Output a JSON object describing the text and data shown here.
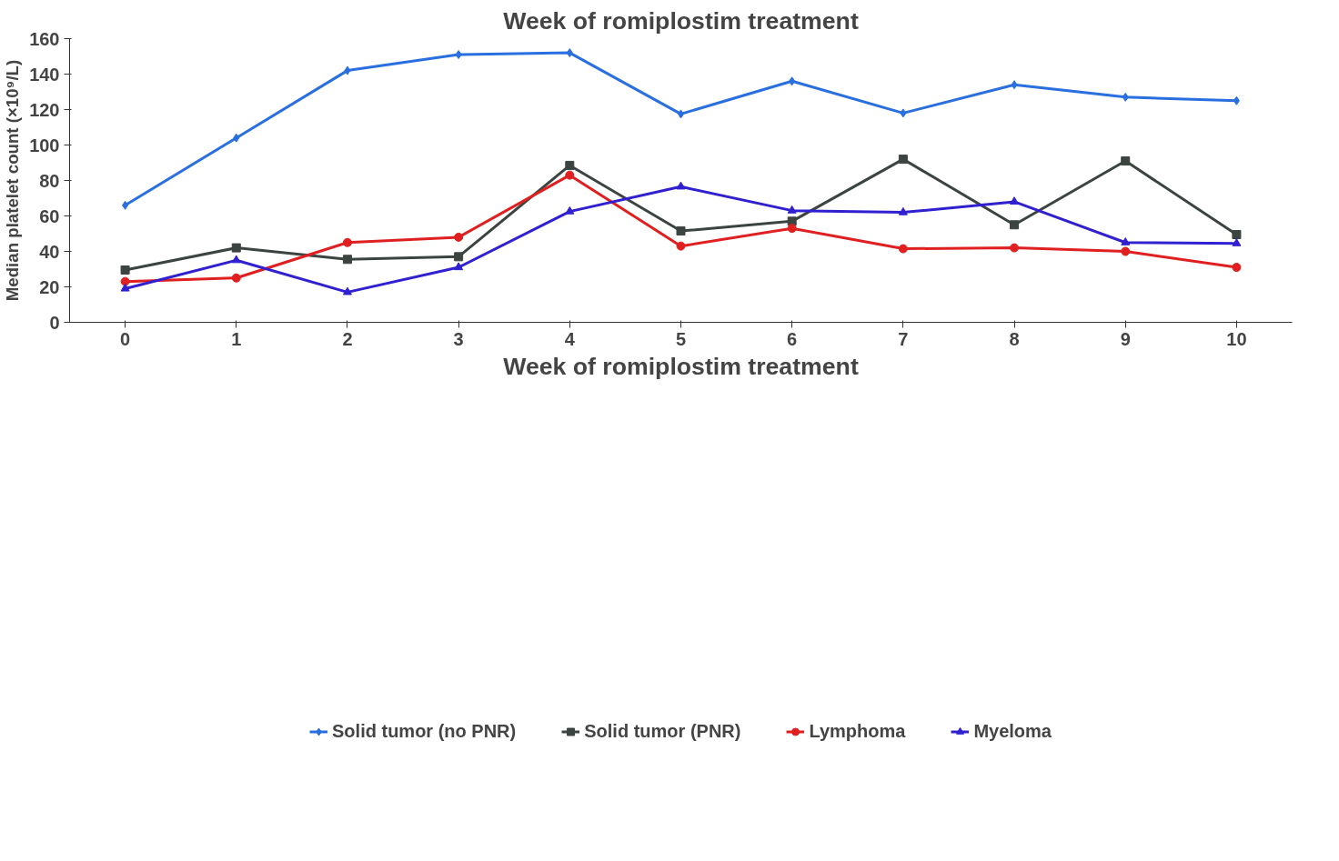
{
  "chart_data": {
    "type": "line",
    "title": "Week of romiplostim treatment",
    "xlabel": "Week of romiplostim treatment",
    "ylabel": "Median platelet count (×10⁹/L)",
    "categories": [
      "0",
      "1",
      "2",
      "3",
      "4",
      "5",
      "6",
      "7",
      "8",
      "9",
      "10"
    ],
    "series": [
      {
        "name": "Solid tumor (no PNR)",
        "color": "#2a6fe0",
        "marker": "diamond",
        "values": [
          66,
          104,
          142,
          151,
          152,
          117.5,
          136,
          118,
          134,
          127,
          125
        ]
      },
      {
        "name": "Solid tumor (PNR)",
        "color": "#3c4440",
        "marker": "square",
        "values": [
          29.5,
          42,
          35.5,
          37,
          88.5,
          51.5,
          57,
          92,
          55,
          91,
          49.5
        ]
      },
      {
        "name": "Lymphoma",
        "color": "#e02020",
        "marker": "circle",
        "values": [
          23,
          25,
          45,
          48,
          83,
          43,
          53,
          41.5,
          42,
          40,
          31
        ]
      },
      {
        "name": "Myeloma",
        "color": "#3020d0",
        "marker": "triangle",
        "values": [
          19,
          35,
          17,
          31,
          62.5,
          76.5,
          63,
          62,
          68,
          45,
          44.5
        ]
      }
    ],
    "ylim": [
      0,
      160
    ],
    "yticks": [
      0,
      20,
      40,
      60,
      80,
      100,
      120,
      140,
      160
    ],
    "grid": false,
    "legend": "bottom"
  }
}
